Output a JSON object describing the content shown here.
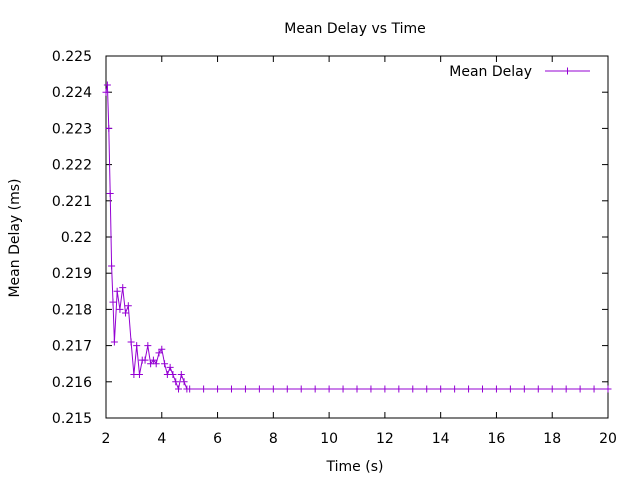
{
  "chart_data": {
    "type": "line",
    "title": "Mean Delay vs Time",
    "xlabel": "Time (s)",
    "ylabel": "Mean Delay (ms)",
    "xlim": [
      2,
      20
    ],
    "ylim": [
      0.215,
      0.225
    ],
    "xticks": [
      2,
      4,
      6,
      8,
      10,
      12,
      14,
      16,
      18,
      20
    ],
    "yticks": [
      0.215,
      0.216,
      0.217,
      0.218,
      0.219,
      0.22,
      0.221,
      0.222,
      0.223,
      0.224,
      0.225
    ],
    "ytick_labels": [
      "0.215",
      "0.216",
      "0.217",
      "0.218",
      "0.219",
      "0.22",
      "0.221",
      "0.222",
      "0.223",
      "0.224",
      "0.225"
    ],
    "grid": false,
    "legend_position": "top-right",
    "series": [
      {
        "name": "Mean Delay",
        "color": "#9400D3",
        "marker": "plus",
        "x": [
          2.0,
          2.05,
          2.1,
          2.15,
          2.2,
          2.25,
          2.3,
          2.4,
          2.5,
          2.6,
          2.7,
          2.8,
          2.9,
          3.0,
          3.1,
          3.2,
          3.3,
          3.4,
          3.5,
          3.6,
          3.7,
          3.8,
          3.9,
          4.0,
          4.1,
          4.2,
          4.3,
          4.4,
          4.5,
          4.6,
          4.7,
          4.8,
          4.9,
          5.0,
          5.5,
          6.0,
          6.5,
          7.0,
          7.5,
          8.0,
          8.5,
          9.0,
          9.5,
          10.0,
          10.5,
          11.0,
          11.5,
          12.0,
          12.5,
          13.0,
          13.5,
          14.0,
          14.5,
          15.0,
          15.5,
          16.0,
          16.5,
          17.0,
          17.5,
          18.0,
          18.5,
          19.0,
          19.5,
          20.0
        ],
        "y": [
          0.224,
          0.2242,
          0.223,
          0.2212,
          0.2192,
          0.2182,
          0.2171,
          0.2185,
          0.218,
          0.2186,
          0.2179,
          0.2181,
          0.2171,
          0.2162,
          0.217,
          0.2162,
          0.2166,
          0.2166,
          0.217,
          0.2165,
          0.2166,
          0.2165,
          0.2168,
          0.2169,
          0.2165,
          0.2162,
          0.2164,
          0.2162,
          0.216,
          0.2158,
          0.2162,
          0.216,
          0.2158,
          0.2158,
          0.2158,
          0.2158,
          0.2158,
          0.2158,
          0.2158,
          0.2158,
          0.2158,
          0.2158,
          0.2158,
          0.2158,
          0.2158,
          0.2158,
          0.2158,
          0.2158,
          0.2158,
          0.2158,
          0.2158,
          0.2158,
          0.2158,
          0.2158,
          0.2158,
          0.2158,
          0.2158,
          0.2158,
          0.2158,
          0.2158,
          0.2158,
          0.2158,
          0.2158,
          0.2158
        ]
      }
    ]
  }
}
